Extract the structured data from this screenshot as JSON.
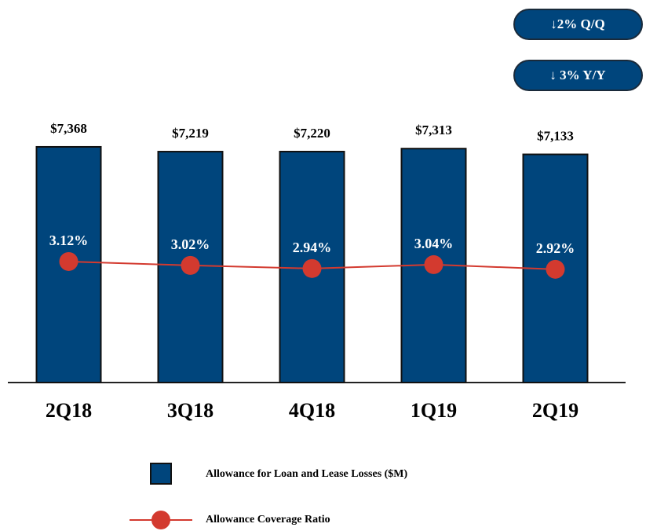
{
  "chart_data": {
    "type": "bar",
    "categories": [
      "2Q18",
      "3Q18",
      "4Q18",
      "1Q19",
      "2Q19"
    ],
    "series": [
      {
        "name": "Allowance for Loan and Lease Losses ($M)",
        "type": "bar",
        "color": "#00457c",
        "values": [
          7368,
          7219,
          7220,
          7313,
          7133
        ],
        "value_labels": [
          "$7,368",
          "$7,219",
          "$7,220",
          "$7,313",
          "$7,133"
        ]
      },
      {
        "name": "Allowance Coverage Ratio",
        "type": "line",
        "axis": "y2",
        "color": "#d33a2f",
        "values": [
          3.12,
          3.02,
          2.94,
          3.04,
          2.92
        ],
        "value_labels": [
          "3.12%",
          "3.02%",
          "2.94%",
          "3.04%",
          "2.92%"
        ]
      }
    ],
    "ylim": [
      0,
      9700
    ],
    "y2lim": [
      0,
      8
    ],
    "annotations": [
      "↓2% Q/Q",
      "↓ 3% Y/Y"
    ]
  }
}
